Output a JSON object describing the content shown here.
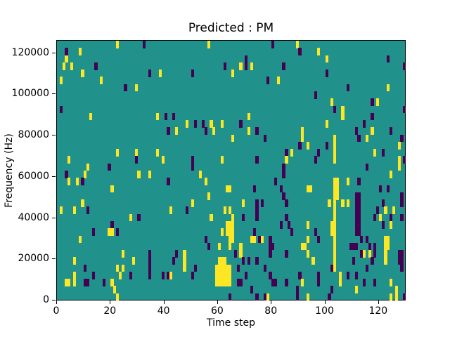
{
  "chart_data": {
    "type": "heatmap",
    "title": "Predicted : PM",
    "xlabel": "Time step",
    "ylabel": "Frequency (Hz)",
    "x_ticks": [
      0,
      20,
      40,
      60,
      80,
      100,
      120
    ],
    "y_ticks": [
      0,
      20000,
      40000,
      60000,
      80000,
      100000,
      120000
    ],
    "x_range": [
      0,
      130
    ],
    "y_range": [
      0,
      126000
    ],
    "grid": {
      "cols": 130,
      "rows": 36
    },
    "legend": "none",
    "colors": {
      "background": "#21918c",
      "high": "#fde725",
      "low": "#440154",
      "axis": "#000000",
      "figure_background": "#ffffff"
    },
    "cells_format": "[col 0-129 from left, row 0-35 from top, value] where y=high(yellow) p=low(purple); each row spans 3500 Hz",
    "cells": [
      [
        22,
        0,
        "y"
      ],
      [
        32,
        0,
        "p"
      ],
      [
        56,
        0,
        "y"
      ],
      [
        80,
        0,
        "p"
      ],
      [
        89,
        0,
        "y"
      ],
      [
        3,
        1,
        "p"
      ],
      [
        8,
        1,
        "y"
      ],
      [
        90,
        1,
        "p"
      ],
      [
        97,
        1,
        "y"
      ],
      [
        3,
        2,
        "y"
      ],
      [
        70,
        2,
        "p"
      ],
      [
        100,
        2,
        "y"
      ],
      [
        123,
        2,
        "p"
      ],
      [
        2,
        3,
        "y"
      ],
      [
        5,
        3,
        "y"
      ],
      [
        14,
        3,
        "p"
      ],
      [
        62,
        3,
        "p"
      ],
      [
        68,
        3,
        "y"
      ],
      [
        70,
        3,
        "p"
      ],
      [
        72,
        3,
        "y"
      ],
      [
        84,
        3,
        "p"
      ],
      [
        129,
        3,
        "p"
      ],
      [
        9,
        4,
        "y"
      ],
      [
        34,
        4,
        "p"
      ],
      [
        38,
        4,
        "y"
      ],
      [
        50,
        4,
        "p"
      ],
      [
        65,
        4,
        "y"
      ],
      [
        100,
        4,
        "p"
      ],
      [
        1,
        5,
        "y"
      ],
      [
        16,
        5,
        "y"
      ],
      [
        78,
        5,
        "p"
      ],
      [
        82,
        5,
        "y"
      ],
      [
        25,
        6,
        "p"
      ],
      [
        29,
        6,
        "y"
      ],
      [
        108,
        6,
        "p"
      ],
      [
        123,
        6,
        "y"
      ],
      [
        96,
        7,
        "p"
      ],
      [
        102,
        8,
        "y"
      ],
      [
        117,
        8,
        "p"
      ],
      [
        119,
        8,
        "y"
      ],
      [
        1,
        9,
        "p"
      ],
      [
        103,
        9,
        "p"
      ],
      [
        106,
        9,
        "y"
      ],
      [
        129,
        9,
        "p"
      ],
      [
        12,
        10,
        "y"
      ],
      [
        37,
        10,
        "y"
      ],
      [
        40,
        10,
        "p"
      ],
      [
        43,
        10,
        "p"
      ],
      [
        71,
        10,
        "y"
      ],
      [
        106,
        10,
        "y"
      ],
      [
        117,
        10,
        "p"
      ],
      [
        48,
        11,
        "y"
      ],
      [
        51,
        11,
        "p"
      ],
      [
        54,
        11,
        "p"
      ],
      [
        57,
        11,
        "y"
      ],
      [
        61,
        11,
        "y"
      ],
      [
        68,
        11,
        "p"
      ],
      [
        100,
        11,
        "y"
      ],
      [
        114,
        11,
        "p"
      ],
      [
        41,
        12,
        "p"
      ],
      [
        44,
        12,
        "y"
      ],
      [
        55,
        12,
        "p"
      ],
      [
        58,
        12,
        "y"
      ],
      [
        71,
        12,
        "y"
      ],
      [
        74,
        12,
        "p"
      ],
      [
        91,
        12,
        "y"
      ],
      [
        111,
        12,
        "p"
      ],
      [
        117,
        12,
        "y"
      ],
      [
        124,
        12,
        "p"
      ],
      [
        65,
        13,
        "y"
      ],
      [
        77,
        13,
        "p"
      ],
      [
        91,
        13,
        "y"
      ],
      [
        103,
        13,
        "y"
      ],
      [
        112,
        13,
        "p"
      ],
      [
        115,
        13,
        "y"
      ],
      [
        128,
        13,
        "p"
      ],
      [
        90,
        14,
        "p"
      ],
      [
        93,
        14,
        "y"
      ],
      [
        100,
        14,
        "p"
      ],
      [
        103,
        14,
        "y"
      ],
      [
        127,
        14,
        "y"
      ],
      [
        22,
        15,
        "y"
      ],
      [
        29,
        15,
        "y"
      ],
      [
        37,
        15,
        "y"
      ],
      [
        85,
        15,
        "p"
      ],
      [
        87,
        15,
        "y"
      ],
      [
        97,
        15,
        "p"
      ],
      [
        103,
        15,
        "y"
      ],
      [
        118,
        15,
        "y"
      ],
      [
        121,
        15,
        "p"
      ],
      [
        4,
        16,
        "y"
      ],
      [
        29,
        16,
        "p"
      ],
      [
        39,
        16,
        "y"
      ],
      [
        50,
        16,
        "p"
      ],
      [
        61,
        16,
        "y"
      ],
      [
        74,
        16,
        "p"
      ],
      [
        85,
        16,
        "y"
      ],
      [
        96,
        16,
        "p"
      ],
      [
        103,
        16,
        "y"
      ],
      [
        127,
        16,
        "y"
      ],
      [
        129,
        16,
        "p"
      ],
      [
        11,
        17,
        "y"
      ],
      [
        19,
        17,
        "p"
      ],
      [
        50,
        17,
        "p"
      ],
      [
        84,
        17,
        "p"
      ],
      [
        115,
        17,
        "p"
      ],
      [
        127,
        17,
        "y"
      ],
      [
        3,
        18,
        "p"
      ],
      [
        10,
        18,
        "y"
      ],
      [
        30,
        18,
        "y"
      ],
      [
        34,
        18,
        "y"
      ],
      [
        53,
        18,
        "y"
      ],
      [
        84,
        18,
        "p"
      ],
      [
        124,
        18,
        "y"
      ],
      [
        4,
        19,
        "y"
      ],
      [
        7,
        19,
        "y"
      ],
      [
        9,
        19,
        "p"
      ],
      [
        41,
        19,
        "p"
      ],
      [
        55,
        19,
        "y"
      ],
      [
        81,
        19,
        "p"
      ],
      [
        103,
        19,
        "y"
      ],
      [
        104,
        19,
        "y"
      ],
      [
        108,
        19,
        "y"
      ],
      [
        112,
        19,
        "p"
      ],
      [
        20,
        20,
        "y"
      ],
      [
        63,
        20,
        "y"
      ],
      [
        64,
        20,
        "y"
      ],
      [
        73,
        20,
        "p"
      ],
      [
        83,
        20,
        "p"
      ],
      [
        93,
        20,
        "y"
      ],
      [
        94,
        20,
        "y"
      ],
      [
        103,
        20,
        "y"
      ],
      [
        104,
        20,
        "y"
      ],
      [
        120,
        20,
        "p"
      ],
      [
        123,
        20,
        "p"
      ],
      [
        56,
        21,
        "y"
      ],
      [
        84,
        21,
        "p"
      ],
      [
        103,
        21,
        "y"
      ],
      [
        104,
        21,
        "y"
      ],
      [
        111,
        21,
        "p"
      ],
      [
        112,
        21,
        "p"
      ],
      [
        128,
        21,
        "p"
      ],
      [
        9,
        22,
        "y"
      ],
      [
        50,
        22,
        "y"
      ],
      [
        69,
        22,
        "y"
      ],
      [
        74,
        22,
        "p"
      ],
      [
        76,
        22,
        "p"
      ],
      [
        85,
        22,
        "p"
      ],
      [
        101,
        22,
        "y"
      ],
      [
        103,
        22,
        "y"
      ],
      [
        106,
        22,
        "y"
      ],
      [
        108,
        22,
        "y"
      ],
      [
        111,
        22,
        "p"
      ],
      [
        112,
        22,
        "p"
      ],
      [
        121,
        22,
        "p"
      ],
      [
        128,
        22,
        "p"
      ],
      [
        1,
        23,
        "y"
      ],
      [
        6,
        23,
        "y"
      ],
      [
        11,
        23,
        "p"
      ],
      [
        42,
        23,
        "y"
      ],
      [
        48,
        23,
        "p"
      ],
      [
        62,
        23,
        "y"
      ],
      [
        64,
        23,
        "y"
      ],
      [
        74,
        23,
        "p"
      ],
      [
        103,
        23,
        "y"
      ],
      [
        111,
        23,
        "p"
      ],
      [
        112,
        23,
        "p"
      ],
      [
        119,
        23,
        "p"
      ],
      [
        122,
        23,
        "y"
      ],
      [
        125,
        23,
        "y"
      ],
      [
        27,
        24,
        "y"
      ],
      [
        30,
        24,
        "p"
      ],
      [
        57,
        24,
        "y"
      ],
      [
        65,
        24,
        "y"
      ],
      [
        69,
        24,
        "p"
      ],
      [
        74,
        24,
        "p"
      ],
      [
        85,
        24,
        "p"
      ],
      [
        103,
        24,
        "y"
      ],
      [
        111,
        24,
        "p"
      ],
      [
        112,
        24,
        "p"
      ],
      [
        118,
        24,
        "p"
      ],
      [
        120,
        24,
        "y"
      ],
      [
        124,
        24,
        "p"
      ],
      [
        128,
        24,
        "p"
      ],
      [
        20,
        25,
        "p"
      ],
      [
        63,
        25,
        "y"
      ],
      [
        64,
        25,
        "y"
      ],
      [
        65,
        25,
        "y"
      ],
      [
        83,
        25,
        "p"
      ],
      [
        86,
        25,
        "p"
      ],
      [
        93,
        25,
        "y"
      ],
      [
        102,
        25,
        "y"
      ],
      [
        103,
        25,
        "y"
      ],
      [
        111,
        25,
        "p"
      ],
      [
        112,
        25,
        "p"
      ],
      [
        121,
        25,
        "p"
      ],
      [
        124,
        25,
        "y"
      ],
      [
        13,
        26,
        "p"
      ],
      [
        19,
        26,
        "y"
      ],
      [
        20,
        26,
        "y"
      ],
      [
        22,
        26,
        "p"
      ],
      [
        61,
        26,
        "y"
      ],
      [
        63,
        26,
        "y"
      ],
      [
        64,
        26,
        "y"
      ],
      [
        65,
        26,
        "y"
      ],
      [
        73,
        26,
        "p"
      ],
      [
        87,
        26,
        "p"
      ],
      [
        96,
        26,
        "p"
      ],
      [
        102,
        26,
        "y"
      ],
      [
        103,
        26,
        "y"
      ],
      [
        111,
        26,
        "p"
      ],
      [
        112,
        26,
        "p"
      ],
      [
        8,
        27,
        "y"
      ],
      [
        55,
        27,
        "p"
      ],
      [
        64,
        27,
        "y"
      ],
      [
        65,
        27,
        "y"
      ],
      [
        72,
        27,
        "y"
      ],
      [
        73,
        27,
        "y"
      ],
      [
        75,
        27,
        "p"
      ],
      [
        76,
        27,
        "y"
      ],
      [
        79,
        27,
        "p"
      ],
      [
        93,
        27,
        "y"
      ],
      [
        97,
        27,
        "p"
      ],
      [
        103,
        27,
        "y"
      ],
      [
        113,
        27,
        "p"
      ],
      [
        115,
        27,
        "p"
      ],
      [
        122,
        27,
        "y"
      ],
      [
        123,
        27,
        "y"
      ],
      [
        56,
        28,
        "p"
      ],
      [
        60,
        28,
        "y"
      ],
      [
        64,
        28,
        "y"
      ],
      [
        68,
        28,
        "y"
      ],
      [
        79,
        28,
        "p"
      ],
      [
        80,
        28,
        "p"
      ],
      [
        91,
        28,
        "y"
      ],
      [
        92,
        28,
        "y"
      ],
      [
        103,
        28,
        "y"
      ],
      [
        109,
        28,
        "p"
      ],
      [
        110,
        28,
        "p"
      ],
      [
        111,
        28,
        "p"
      ],
      [
        116,
        28,
        "p"
      ],
      [
        118,
        28,
        "p"
      ],
      [
        122,
        28,
        "y"
      ],
      [
        123,
        28,
        "y"
      ],
      [
        24,
        29,
        "y"
      ],
      [
        34,
        29,
        "p"
      ],
      [
        44,
        29,
        "p"
      ],
      [
        47,
        29,
        "y"
      ],
      [
        66,
        29,
        "p"
      ],
      [
        68,
        29,
        "y"
      ],
      [
        79,
        29,
        "p"
      ],
      [
        85,
        29,
        "p"
      ],
      [
        93,
        29,
        "y"
      ],
      [
        103,
        29,
        "y"
      ],
      [
        113,
        29,
        "p"
      ],
      [
        114,
        29,
        "y"
      ],
      [
        116,
        29,
        "y"
      ],
      [
        118,
        29,
        "p"
      ],
      [
        122,
        29,
        "y"
      ],
      [
        127,
        29,
        "p"
      ],
      [
        128,
        29,
        "p"
      ],
      [
        6,
        30,
        "y"
      ],
      [
        28,
        30,
        "y"
      ],
      [
        34,
        30,
        "p"
      ],
      [
        43,
        30,
        "p"
      ],
      [
        47,
        30,
        "y"
      ],
      [
        60,
        30,
        "y"
      ],
      [
        61,
        30,
        "y"
      ],
      [
        62,
        30,
        "y"
      ],
      [
        69,
        30,
        "p"
      ],
      [
        71,
        30,
        "p"
      ],
      [
        74,
        30,
        "p"
      ],
      [
        95,
        30,
        "y"
      ],
      [
        103,
        30,
        "y"
      ],
      [
        110,
        30,
        "p"
      ],
      [
        117,
        30,
        "p"
      ],
      [
        122,
        30,
        "y"
      ],
      [
        127,
        30,
        "p"
      ],
      [
        128,
        30,
        "p"
      ],
      [
        10,
        31,
        "p"
      ],
      [
        22,
        31,
        "y"
      ],
      [
        24,
        31,
        "y"
      ],
      [
        34,
        31,
        "p"
      ],
      [
        47,
        31,
        "y"
      ],
      [
        51,
        31,
        "p"
      ],
      [
        59,
        31,
        "y"
      ],
      [
        60,
        31,
        "y"
      ],
      [
        61,
        31,
        "y"
      ],
      [
        62,
        31,
        "y"
      ],
      [
        63,
        31,
        "y"
      ],
      [
        64,
        31,
        "y"
      ],
      [
        67,
        31,
        "p"
      ],
      [
        77,
        31,
        "p"
      ],
      [
        102,
        31,
        "p"
      ],
      [
        103,
        31,
        "y"
      ],
      [
        115,
        31,
        "p"
      ],
      [
        128,
        31,
        "p"
      ],
      [
        6,
        32,
        "y"
      ],
      [
        13,
        32,
        "p"
      ],
      [
        23,
        32,
        "y"
      ],
      [
        27,
        32,
        "p"
      ],
      [
        34,
        32,
        "p"
      ],
      [
        39,
        32,
        "p"
      ],
      [
        41,
        32,
        "p"
      ],
      [
        42,
        32,
        "y"
      ],
      [
        50,
        32,
        "p"
      ],
      [
        59,
        32,
        "y"
      ],
      [
        60,
        32,
        "y"
      ],
      [
        61,
        32,
        "y"
      ],
      [
        62,
        32,
        "y"
      ],
      [
        63,
        32,
        "y"
      ],
      [
        64,
        32,
        "y"
      ],
      [
        70,
        32,
        "p"
      ],
      [
        79,
        32,
        "p"
      ],
      [
        90,
        32,
        "p"
      ],
      [
        97,
        32,
        "p"
      ],
      [
        105,
        32,
        "y"
      ],
      [
        108,
        32,
        "p"
      ],
      [
        111,
        32,
        "p"
      ],
      [
        3,
        33,
        "y"
      ],
      [
        4,
        33,
        "y"
      ],
      [
        6,
        33,
        "y"
      ],
      [
        10,
        33,
        "p"
      ],
      [
        11,
        33,
        "p"
      ],
      [
        17,
        33,
        "p"
      ],
      [
        20,
        33,
        "y"
      ],
      [
        59,
        33,
        "y"
      ],
      [
        60,
        33,
        "y"
      ],
      [
        61,
        33,
        "y"
      ],
      [
        62,
        33,
        "y"
      ],
      [
        63,
        33,
        "y"
      ],
      [
        64,
        33,
        "y"
      ],
      [
        67,
        33,
        "p"
      ],
      [
        68,
        33,
        "p"
      ],
      [
        80,
        33,
        "p"
      ],
      [
        81,
        33,
        "p"
      ],
      [
        85,
        33,
        "p"
      ],
      [
        91,
        33,
        "y"
      ],
      [
        97,
        33,
        "p"
      ],
      [
        105,
        33,
        "y"
      ],
      [
        114,
        33,
        "p"
      ],
      [
        118,
        33,
        "p"
      ],
      [
        124,
        33,
        "y"
      ],
      [
        21,
        34,
        "y"
      ],
      [
        72,
        34,
        "p"
      ],
      [
        89,
        34,
        "p"
      ],
      [
        102,
        34,
        "p"
      ],
      [
        111,
        34,
        "y"
      ],
      [
        126,
        34,
        "y"
      ],
      [
        22,
        35,
        "y"
      ],
      [
        64,
        35,
        "p"
      ],
      [
        74,
        35,
        "p"
      ],
      [
        77,
        35,
        "p"
      ],
      [
        78,
        35,
        "y"
      ],
      [
        89,
        35,
        "p"
      ],
      [
        93,
        35,
        "y"
      ],
      [
        101,
        35,
        "p"
      ],
      [
        124,
        35,
        "y"
      ],
      [
        126,
        35,
        "y"
      ],
      [
        129,
        35,
        "p"
      ]
    ]
  }
}
